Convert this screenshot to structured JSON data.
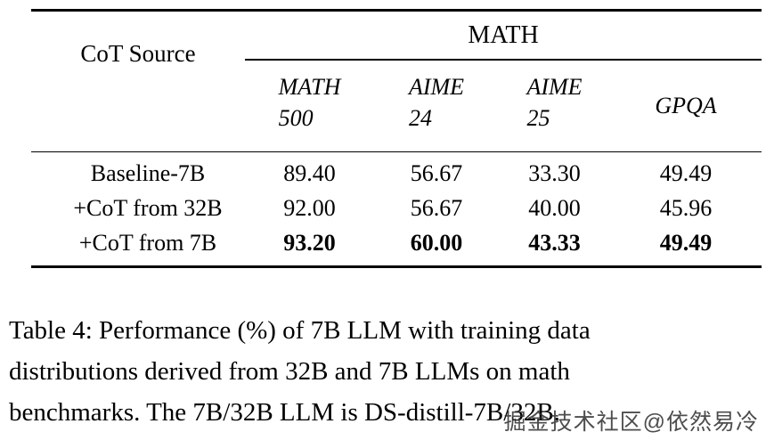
{
  "table": {
    "corner_label": "CoT Source",
    "group_header": "MATH",
    "columns": [
      {
        "line1": "MATH",
        "line2": "500"
      },
      {
        "line1": "AIME",
        "line2": "24"
      },
      {
        "line1": "AIME",
        "line2": "25"
      },
      {
        "line1": "GPQA",
        "line2": ""
      }
    ],
    "rows": [
      {
        "label": "Baseline-7B",
        "values": [
          "89.40",
          "56.67",
          "33.30",
          "49.49"
        ]
      },
      {
        "label": "+CoT from 32B",
        "values": [
          "92.00",
          "56.67",
          "40.00",
          "45.96"
        ]
      },
      {
        "label": "+CoT from 7B",
        "values": [
          "93.20",
          "60.00",
          "43.33",
          "49.49"
        ]
      }
    ]
  },
  "caption": {
    "line1": "Table 4: Performance (%) of 7B LLM with training data",
    "line2": "distributions derived from 32B and 7B LLMs on math",
    "line3": "benchmarks. The 7B/32B LLM is DS-distill-7B/32B."
  },
  "watermark": {
    "text": "掘金技术社区@依然易冷"
  }
}
